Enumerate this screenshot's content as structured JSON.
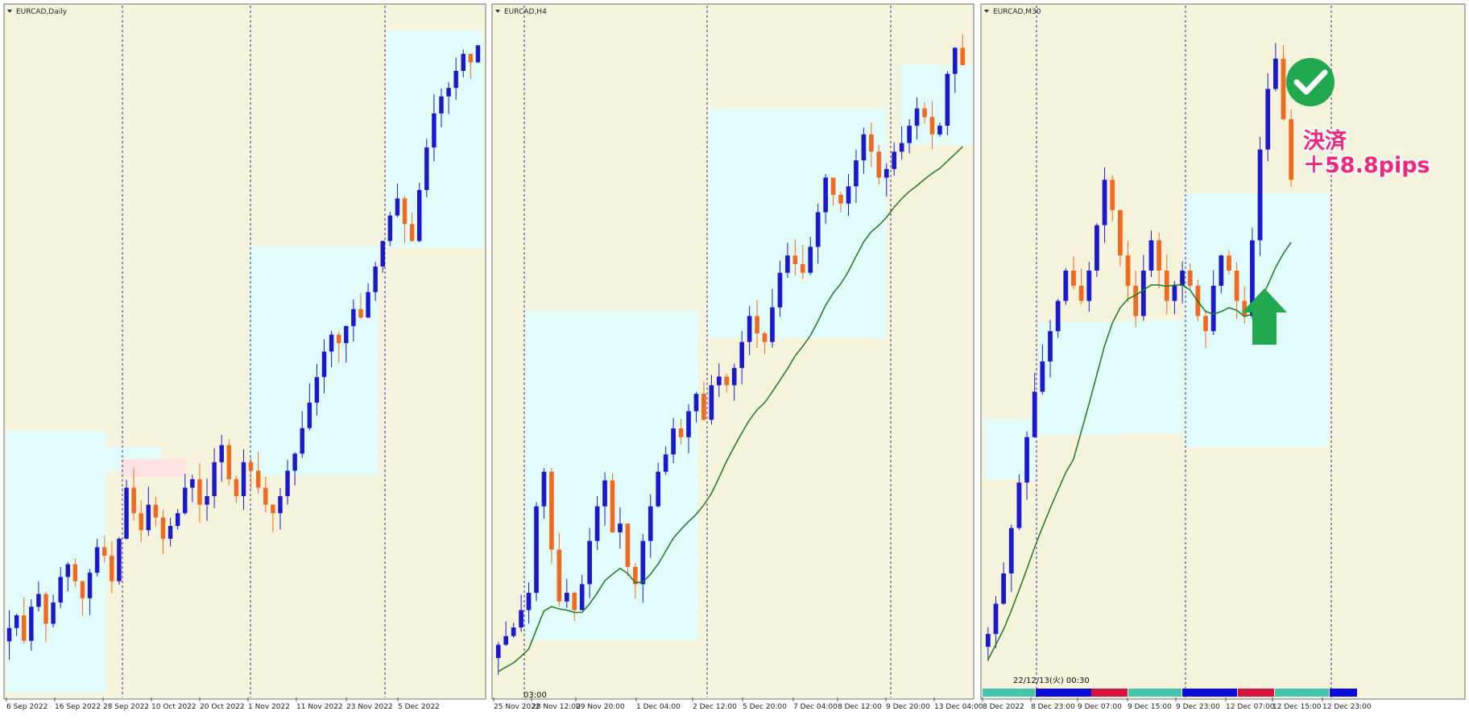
{
  "panels": [
    {
      "title": "EURCAD,Daily",
      "xticks": [
        "6 Sep 2022",
        "16 Sep 2022",
        "28 Sep 2022",
        "10 Oct 2022",
        "20 Oct 2022",
        "1 Nov 2022",
        "11 Nov 2022",
        "23 Nov 2022",
        "5 Dec 2022"
      ]
    },
    {
      "title": "EURCAD,H4",
      "xticks": [
        "25 Nov 2022",
        "28 Nov 12:00",
        "29 Nov 20:00",
        "1 Dec 04:00",
        "2 Dec 12:00",
        "5 Dec 20:00",
        "7 Dec 04:00",
        "8 Dec 12:00",
        "9 Dec 20:00",
        "13 Dec 04:00"
      ],
      "time_label": "03:00"
    },
    {
      "title": "EURCAD,M30",
      "xticks": [
        "8 Dec 2022",
        "8 Dec 23:00",
        "9 Dec 07:00",
        "9 Dec 15:00",
        "9 Dec 23:00",
        "12 Dec 07:00",
        "12 Dec 15:00",
        "12 Dec 23:00"
      ],
      "time_label": "22/12/13(火) 00:30"
    }
  ],
  "annotation": {
    "line1": "決済",
    "line2": "＋58.8pips"
  },
  "colors": {
    "bull": "#1a1acc",
    "bear": "#f06a22",
    "ma": "#1e7a1e",
    "background": "#f6f3dc",
    "highlight": "#e2fbfb",
    "badge": "#22a84e",
    "annotation_text": "#f0287a"
  },
  "icons": [
    "check-badge-icon",
    "up-arrow-icon"
  ],
  "chart_data": [
    {
      "type": "candlestick",
      "symbol": "EURCAD",
      "timeframe": "Daily",
      "x_start": "6 Sep 2022",
      "x_end": "5 Dec 2022",
      "trend": "up",
      "ohlc_close": [
        1.345,
        1.348,
        1.342,
        1.35,
        1.353,
        1.346,
        1.351,
        1.357,
        1.36,
        1.356,
        1.352,
        1.358,
        1.364,
        1.362,
        1.356,
        1.366,
        1.378,
        1.372,
        1.368,
        1.374,
        1.371,
        1.366,
        1.369,
        1.372,
        1.378,
        1.38,
        1.374,
        1.376,
        1.384,
        1.388,
        1.38,
        1.376,
        1.384,
        1.382,
        1.378,
        1.374,
        1.372,
        1.376,
        1.382,
        1.386,
        1.392,
        1.398,
        1.404,
        1.41,
        1.414,
        1.412,
        1.416,
        1.42,
        1.418,
        1.424,
        1.43,
        1.436,
        1.442,
        1.446,
        1.44,
        1.436,
        1.448,
        1.458,
        1.466,
        1.47,
        1.472,
        1.476,
        1.48,
        1.478,
        1.482
      ]
    },
    {
      "type": "candlestick",
      "symbol": "EURCAD",
      "timeframe": "H4",
      "x_start": "25 Nov 2022",
      "x_end": "13 Dec 04:00",
      "trend": "up",
      "moving_average": true,
      "ohlc_close": [
        1.388,
        1.39,
        1.392,
        1.396,
        1.4,
        1.42,
        1.428,
        1.41,
        1.398,
        1.4,
        1.396,
        1.402,
        1.412,
        1.42,
        1.426,
        1.414,
        1.416,
        1.406,
        1.402,
        1.412,
        1.42,
        1.428,
        1.432,
        1.438,
        1.436,
        1.442,
        1.446,
        1.44,
        1.448,
        1.45,
        1.448,
        1.452,
        1.458,
        1.464,
        1.46,
        1.458,
        1.466,
        1.474,
        1.478,
        1.476,
        1.474,
        1.48,
        1.488,
        1.496,
        1.492,
        1.49,
        1.494,
        1.5,
        1.506,
        1.502,
        1.496,
        1.498,
        1.502,
        1.504,
        1.508,
        1.512,
        1.51,
        1.506,
        1.508,
        1.52,
        1.526,
        1.522
      ]
    },
    {
      "type": "candlestick",
      "symbol": "EURCAD",
      "timeframe": "M30",
      "x_start": "8 Dec 2022",
      "x_end": "12 Dec 23:00",
      "trend": "up",
      "moving_average": true,
      "ohlc_close": [
        1.492,
        1.494,
        1.496,
        1.499,
        1.502,
        1.505,
        1.508,
        1.51,
        1.512,
        1.514,
        1.516,
        1.515,
        1.514,
        1.516,
        1.519,
        1.522,
        1.52,
        1.517,
        1.515,
        1.513,
        1.516,
        1.518,
        1.516,
        1.514,
        1.515,
        1.516,
        1.515,
        1.513,
        1.512,
        1.515,
        1.517,
        1.516,
        1.514,
        1.513,
        1.518,
        1.524,
        1.528,
        1.53,
        1.526,
        1.522
      ],
      "trade_result_pips": 58.8
    }
  ]
}
